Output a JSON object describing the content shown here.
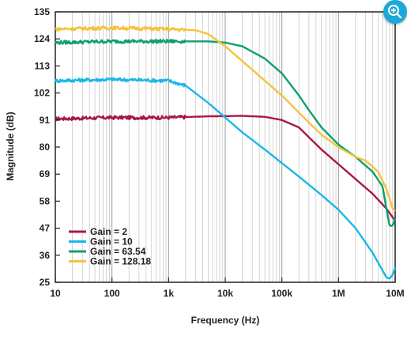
{
  "chart_data": {
    "type": "line",
    "xlabel": "Frequency (Hz)",
    "ylabel": "Magnitude (dB)",
    "xscale": "log",
    "xlim": [
      10,
      10000000
    ],
    "ylim": [
      25,
      135
    ],
    "x_ticks": [
      10,
      100,
      1000,
      10000,
      100000,
      1000000,
      10000000
    ],
    "x_tick_labels": [
      "10",
      "100",
      "1k",
      "10k",
      "100k",
      "1M",
      "10M"
    ],
    "y_ticks": [
      25,
      36,
      47,
      58,
      69,
      80,
      91,
      102,
      113,
      124,
      135
    ],
    "y_tick_labels": [
      "25",
      "36",
      "47",
      "58",
      "69",
      "80",
      "91",
      "102",
      "113",
      "124",
      "135"
    ],
    "grid": "vertical log minor + major lines",
    "legend": "bottom-left",
    "series": [
      {
        "name": "Gain = 2",
        "color": "#a8174a",
        "points": [
          [
            10,
            91.5
          ],
          [
            100,
            92
          ],
          [
            1000,
            92
          ],
          [
            5000,
            92.5
          ],
          [
            20000,
            92.7
          ],
          [
            50000,
            92.3
          ],
          [
            100000,
            91
          ],
          [
            200000,
            88
          ],
          [
            300000,
            84
          ],
          [
            500000,
            79
          ],
          [
            1000000,
            73
          ],
          [
            2000000,
            67
          ],
          [
            4000000,
            61
          ],
          [
            7000000,
            55
          ],
          [
            10000000,
            50
          ]
        ]
      },
      {
        "name": "Gain = 10",
        "color": "#1ab7e8",
        "points": [
          [
            10,
            107
          ],
          [
            100,
            107.5
          ],
          [
            1000,
            107
          ],
          [
            2000,
            105
          ],
          [
            5000,
            98
          ],
          [
            10000,
            92
          ],
          [
            20000,
            86
          ],
          [
            50000,
            79
          ],
          [
            100000,
            73.5
          ],
          [
            200000,
            68
          ],
          [
            500000,
            60.5
          ],
          [
            1000000,
            54.5
          ],
          [
            2000000,
            47
          ],
          [
            4000000,
            37
          ],
          [
            7000000,
            27
          ],
          [
            8000000,
            26.5
          ],
          [
            9000000,
            28
          ],
          [
            10000000,
            31
          ]
        ]
      },
      {
        "name": "Gain = 63.54",
        "color": "#0fa06e",
        "points": [
          [
            10,
            122.5
          ],
          [
            100,
            123
          ],
          [
            1000,
            123
          ],
          [
            5000,
            123
          ],
          [
            10000,
            122.5
          ],
          [
            20000,
            121
          ],
          [
            50000,
            116
          ],
          [
            100000,
            110
          ],
          [
            200000,
            101
          ],
          [
            300000,
            95
          ],
          [
            500000,
            88
          ],
          [
            1000000,
            81
          ],
          [
            2000000,
            76
          ],
          [
            4000000,
            70
          ],
          [
            6000000,
            64
          ],
          [
            7000000,
            55
          ],
          [
            8000000,
            48
          ],
          [
            9000000,
            48
          ],
          [
            10000000,
            51
          ]
        ]
      },
      {
        "name": "Gain = 128.18",
        "color": "#f5c33b",
        "points": [
          [
            10,
            128
          ],
          [
            100,
            128.5
          ],
          [
            1000,
            128
          ],
          [
            3000,
            127.5
          ],
          [
            5000,
            126
          ],
          [
            10000,
            121
          ],
          [
            20000,
            115
          ],
          [
            50000,
            107
          ],
          [
            100000,
            101
          ],
          [
            200000,
            94
          ],
          [
            300000,
            90
          ],
          [
            500000,
            85
          ],
          [
            1000000,
            80
          ],
          [
            2000000,
            76
          ],
          [
            3000000,
            74.5
          ],
          [
            5000000,
            70
          ],
          [
            7000000,
            63
          ],
          [
            8000000,
            59
          ],
          [
            9000000,
            55
          ],
          [
            10000000,
            54
          ]
        ]
      }
    ]
  },
  "ui": {
    "zoom_icon": "zoom-in-icon"
  }
}
